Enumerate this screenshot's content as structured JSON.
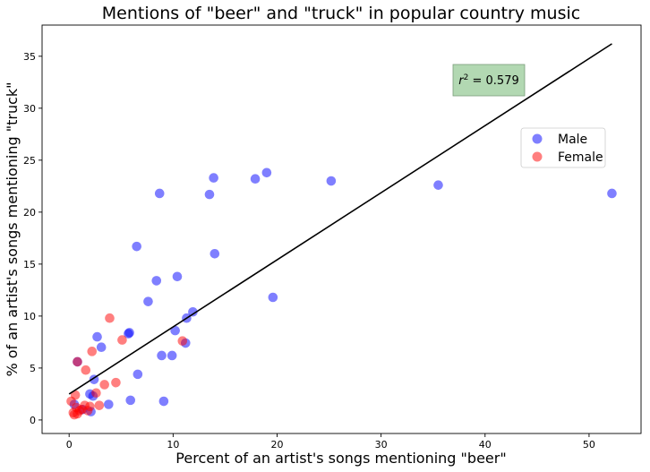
{
  "chart_data": {
    "type": "scatter",
    "title": "Mentions of \"beer\" and \"truck\" in popular country music",
    "xlabel": "Percent of an artist's songs mentioning \"beer\"",
    "ylabel": "% of an artist's songs mentioning \"truck\"",
    "xlim": [
      -2.6,
      55
    ],
    "ylim": [
      -1.3,
      38
    ],
    "xticks": [
      0,
      10,
      20,
      30,
      40,
      50
    ],
    "yticks": [
      0,
      5,
      10,
      15,
      20,
      25,
      30,
      35
    ],
    "grid": false,
    "legend_position": "center-right",
    "series": [
      {
        "name": "Male",
        "color": "#0000ff",
        "alpha": 0.5,
        "points": [
          [
            0.5,
            1.5
          ],
          [
            0.8,
            5.6
          ],
          [
            1.3,
            1.0
          ],
          [
            2.0,
            2.5
          ],
          [
            2.1,
            0.8
          ],
          [
            2.3,
            2.3
          ],
          [
            2.4,
            3.9
          ],
          [
            2.7,
            8.0
          ],
          [
            3.1,
            7.0
          ],
          [
            3.8,
            1.5
          ],
          [
            5.7,
            8.3
          ],
          [
            5.8,
            8.4
          ],
          [
            5.9,
            1.9
          ],
          [
            6.5,
            16.7
          ],
          [
            6.6,
            4.4
          ],
          [
            7.6,
            11.4
          ],
          [
            8.4,
            13.4
          ],
          [
            8.7,
            21.8
          ],
          [
            8.9,
            6.2
          ],
          [
            9.1,
            1.8
          ],
          [
            9.9,
            6.2
          ],
          [
            10.2,
            8.6
          ],
          [
            10.4,
            13.8
          ],
          [
            11.2,
            7.4
          ],
          [
            11.3,
            9.8
          ],
          [
            11.9,
            10.4
          ],
          [
            13.5,
            21.7
          ],
          [
            13.9,
            23.3
          ],
          [
            14.0,
            16.0
          ],
          [
            17.9,
            23.2
          ],
          [
            19.0,
            23.8
          ],
          [
            19.6,
            11.8
          ],
          [
            25.2,
            23.0
          ],
          [
            35.5,
            22.6
          ],
          [
            52.2,
            21.8
          ]
        ]
      },
      {
        "name": "Female",
        "color": "#ff0000",
        "alpha": 0.5,
        "points": [
          [
            0.2,
            1.8
          ],
          [
            0.4,
            0.7
          ],
          [
            0.5,
            0.5
          ],
          [
            0.6,
            2.4
          ],
          [
            0.7,
            1.2
          ],
          [
            0.8,
            0.6
          ],
          [
            0.8,
            5.6
          ],
          [
            1.0,
            0.9
          ],
          [
            1.2,
            1.0
          ],
          [
            1.5,
            1.4
          ],
          [
            1.6,
            4.8
          ],
          [
            1.8,
            0.9
          ],
          [
            2.0,
            1.3
          ],
          [
            2.2,
            6.6
          ],
          [
            2.6,
            2.6
          ],
          [
            2.9,
            1.4
          ],
          [
            3.4,
            3.4
          ],
          [
            3.9,
            9.8
          ],
          [
            4.5,
            3.6
          ],
          [
            5.1,
            7.7
          ],
          [
            10.9,
            7.6
          ]
        ]
      }
    ],
    "fit_line": {
      "x": [
        0,
        52.2
      ],
      "y": [
        2.5,
        36.2
      ],
      "color": "#000000"
    },
    "annotation": {
      "text": " = 0.579",
      "symbol": "r",
      "superscript": "2",
      "box_color": "#b2d8b2",
      "position": "upper-right"
    }
  }
}
